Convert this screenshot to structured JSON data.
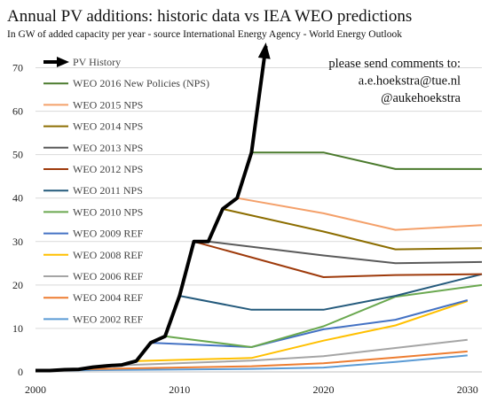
{
  "chart_data": {
    "type": "line",
    "title": "Annual PV additions: historic data vs IEA WEO predictions",
    "subtitle": "In GW of added capacity per year - source International Energy Agency - World Energy Outlook",
    "xlabel": "",
    "ylabel": "",
    "xlim": [
      2000,
      2031
    ],
    "ylim": [
      0,
      75
    ],
    "x_ticks": [
      2000,
      2010,
      2020,
      2030
    ],
    "y_ticks": [
      0,
      10,
      20,
      30,
      40,
      50,
      60,
      70
    ],
    "grid": "horizontal",
    "legend_position": "top-left",
    "annotation_lines": [
      "please send comments to:",
      "a.e.hoekstra@tue.nl",
      "@aukehoekstra"
    ],
    "series": [
      {
        "name": "PV History",
        "color": "#000000",
        "width": 4,
        "arrow": true,
        "x": [
          2000,
          2001,
          2002,
          2003,
          2004,
          2005,
          2006,
          2007,
          2008,
          2009,
          2010,
          2011,
          2012,
          2013,
          2014,
          2015,
          2016
        ],
        "y": [
          0.3,
          0.3,
          0.5,
          0.6,
          1.1,
          1.4,
          1.6,
          2.5,
          6.7,
          8.2,
          17.5,
          30.0,
          30.0,
          37.5,
          40.0,
          50.5,
          75.0
        ]
      },
      {
        "name": "WEO 2016 New Policies (NPS)",
        "color": "#4a7a2c",
        "width": 2,
        "x": [
          2015,
          2020,
          2025,
          2031
        ],
        "y": [
          50.5,
          50.5,
          46.7,
          46.7
        ]
      },
      {
        "name": "WEO 2015 NPS",
        "color": "#f4a06a",
        "width": 2,
        "x": [
          2014,
          2020,
          2025,
          2031
        ],
        "y": [
          40.0,
          36.5,
          32.7,
          33.8
        ]
      },
      {
        "name": "WEO 2014 NPS",
        "color": "#8c6d00",
        "width": 2,
        "x": [
          2013,
          2020,
          2025,
          2031
        ],
        "y": [
          37.5,
          32.3,
          28.2,
          28.5
        ]
      },
      {
        "name": "WEO 2013 NPS",
        "color": "#5a5a5a",
        "width": 2,
        "x": [
          2012,
          2020,
          2025,
          2031
        ],
        "y": [
          30.0,
          26.8,
          25.0,
          25.3
        ]
      },
      {
        "name": "WEO 2012 NPS",
        "color": "#9e3a0b",
        "width": 2,
        "x": [
          2011,
          2020,
          2025,
          2031
        ],
        "y": [
          30.0,
          21.8,
          22.3,
          22.5
        ]
      },
      {
        "name": "WEO 2011 NPS",
        "color": "#245a7c",
        "width": 2,
        "x": [
          2010,
          2015,
          2020,
          2025,
          2031
        ],
        "y": [
          17.5,
          14.3,
          14.3,
          17.5,
          22.5
        ]
      },
      {
        "name": "WEO 2010 NPS",
        "color": "#6aa84f",
        "width": 2,
        "x": [
          2009,
          2015,
          2020,
          2025,
          2031
        ],
        "y": [
          8.2,
          5.7,
          10.5,
          17.3,
          20.0
        ]
      },
      {
        "name": "WEO 2009 REF",
        "color": "#4472c4",
        "width": 2,
        "x": [
          2008,
          2015,
          2020,
          2025,
          2030
        ],
        "y": [
          6.7,
          5.7,
          9.8,
          12.0,
          16.5
        ]
      },
      {
        "name": "WEO 2008 REF",
        "color": "#ffc000",
        "width": 2,
        "x": [
          2007,
          2015,
          2020,
          2025,
          2030
        ],
        "y": [
          2.5,
          3.2,
          7.2,
          10.7,
          16.3
        ]
      },
      {
        "name": "WEO 2006 REF",
        "color": "#a5a5a5",
        "width": 2,
        "x": [
          2005,
          2015,
          2020,
          2025,
          2030
        ],
        "y": [
          1.4,
          2.6,
          3.6,
          5.5,
          7.4
        ]
      },
      {
        "name": "WEO 2004 REF",
        "color": "#ed7d31",
        "width": 2,
        "x": [
          2003,
          2015,
          2020,
          2025,
          2030
        ],
        "y": [
          0.6,
          1.3,
          2.0,
          3.3,
          4.7
        ]
      },
      {
        "name": "WEO 2002 REF",
        "color": "#5b9bd5",
        "width": 2,
        "x": [
          2001,
          2015,
          2020,
          2025,
          2030
        ],
        "y": [
          0.3,
          0.7,
          1.0,
          2.3,
          3.8
        ]
      }
    ]
  }
}
